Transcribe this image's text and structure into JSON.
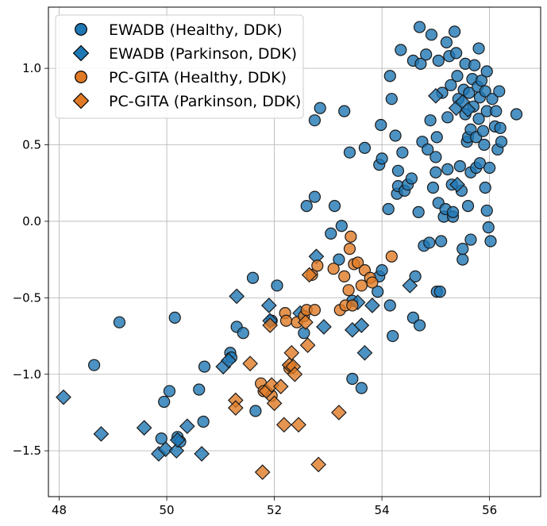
{
  "chart_data": {
    "type": "scatter",
    "xlim": [
      47.8,
      56.95
    ],
    "ylim": [
      -1.8,
      1.4
    ],
    "xticks": [
      48,
      50,
      52,
      54,
      56
    ],
    "yticks": [
      -1.5,
      -1.0,
      -0.5,
      0.0,
      0.5,
      1.0
    ],
    "xtick_labels": [
      "48",
      "50",
      "52",
      "54",
      "56"
    ],
    "ytick_labels": [
      "−1.5",
      "−1.0",
      "−0.5",
      "0.0",
      "0.5",
      "1.0"
    ],
    "grid": true,
    "legend_position": "upper-left",
    "series": [
      {
        "name": "EWADB (Healthy, DDK)",
        "marker": "circle",
        "color": "#1f77b4",
        "edgecolor": "#1a1a1a",
        "points": [
          [
            48.65,
            -0.94
          ],
          [
            49.12,
            -0.66
          ],
          [
            49.9,
            -1.42
          ],
          [
            49.95,
            -1.18
          ],
          [
            50.05,
            -1.11
          ],
          [
            50.15,
            -0.63
          ],
          [
            50.2,
            -1.41
          ],
          [
            50.25,
            -1.44
          ],
          [
            50.6,
            -1.1
          ],
          [
            50.68,
            -1.31
          ],
          [
            50.7,
            -0.95
          ],
          [
            51.18,
            -0.86
          ],
          [
            51.2,
            -0.89
          ],
          [
            51.3,
            -0.69
          ],
          [
            51.42,
            -0.73
          ],
          [
            51.6,
            -0.37
          ],
          [
            51.65,
            -1.24
          ],
          [
            51.95,
            -0.65
          ],
          [
            52.05,
            -0.42
          ],
          [
            52.55,
            -0.73
          ],
          [
            52.6,
            0.1
          ],
          [
            52.75,
            0.66
          ],
          [
            52.75,
            0.16
          ],
          [
            52.85,
            0.74
          ],
          [
            53.05,
            -0.08
          ],
          [
            53.12,
            0.1
          ],
          [
            53.2,
            -0.25
          ],
          [
            53.25,
            -0.03
          ],
          [
            53.3,
            0.72
          ],
          [
            53.4,
            0.45
          ],
          [
            53.45,
            -0.52
          ],
          [
            53.45,
            -1.03
          ],
          [
            53.62,
            -1.09
          ],
          [
            53.68,
            0.48
          ],
          [
            53.92,
            -0.46
          ],
          [
            53.95,
            -0.36
          ],
          [
            53.95,
            0.37
          ],
          [
            53.98,
            0.63
          ],
          [
            54.0,
            0.41
          ],
          [
            54.0,
            -0.32
          ],
          [
            54.12,
            0.08
          ],
          [
            54.15,
            -0.55
          ],
          [
            54.15,
            0.95
          ],
          [
            54.18,
            0.8
          ],
          [
            54.2,
            -0.75
          ],
          [
            54.25,
            0.56
          ],
          [
            54.28,
            0.18
          ],
          [
            54.3,
            0.33
          ],
          [
            54.3,
            0.23
          ],
          [
            54.35,
            1.12
          ],
          [
            54.38,
            0.45
          ],
          [
            54.42,
            0.2
          ],
          [
            54.48,
            0.24
          ],
          [
            54.55,
            0.28
          ],
          [
            54.58,
            -0.63
          ],
          [
            54.58,
            1.05
          ],
          [
            54.62,
            -0.36
          ],
          [
            54.68,
            0.06
          ],
          [
            54.7,
            -0.68
          ],
          [
            54.7,
            1.27
          ],
          [
            54.72,
            1.03
          ],
          [
            54.75,
            0.52
          ],
          [
            54.78,
            -0.16
          ],
          [
            54.82,
            1.09
          ],
          [
            54.85,
            0.47
          ],
          [
            54.88,
            -0.14
          ],
          [
            54.9,
            0.66
          ],
          [
            54.92,
            1.22
          ],
          [
            54.95,
            0.22
          ],
          [
            55.0,
            0.32
          ],
          [
            55.0,
            0.42
          ],
          [
            55.02,
            0.55
          ],
          [
            55.02,
            -0.46
          ],
          [
            55.05,
            1.05
          ],
          [
            55.05,
            0.12
          ],
          [
            55.08,
            -0.46
          ],
          [
            55.1,
            -0.13
          ],
          [
            55.12,
            0.84
          ],
          [
            55.15,
            0.03
          ],
          [
            55.18,
            0.08
          ],
          [
            55.2,
            1.17
          ],
          [
            55.22,
            0.34
          ],
          [
            55.22,
            0.68
          ],
          [
            55.25,
            1.08
          ],
          [
            55.28,
            0.89
          ],
          [
            55.3,
            0.24
          ],
          [
            55.32,
            0.03
          ],
          [
            55.32,
            0.06
          ],
          [
            55.35,
            1.24
          ],
          [
            55.38,
            1.1
          ],
          [
            55.4,
            0.95
          ],
          [
            55.42,
            0.8
          ],
          [
            55.45,
            0.36
          ],
          [
            55.48,
            0.2
          ],
          [
            55.5,
            -0.25
          ],
          [
            55.5,
            -0.18
          ],
          [
            55.52,
            0.86
          ],
          [
            55.55,
            0.7
          ],
          [
            55.55,
            1.03
          ],
          [
            55.58,
            0.52
          ],
          [
            55.6,
            0.55
          ],
          [
            55.6,
            0.1
          ],
          [
            55.62,
            0.84
          ],
          [
            55.65,
            -0.12
          ],
          [
            55.65,
            0.32
          ],
          [
            55.65,
            0.6
          ],
          [
            55.68,
            0.93
          ],
          [
            55.7,
            0.75
          ],
          [
            55.72,
            1.02
          ],
          [
            55.75,
            0.55
          ],
          [
            55.75,
            0.35
          ],
          [
            55.78,
            0.88
          ],
          [
            55.8,
            0.67
          ],
          [
            55.8,
            1.13
          ],
          [
            55.82,
            0.38
          ],
          [
            55.82,
            0.81
          ],
          [
            55.85,
            0.92
          ],
          [
            55.88,
            0.59
          ],
          [
            55.9,
            0.5
          ],
          [
            55.92,
            0.22
          ],
          [
            55.92,
            0.85
          ],
          [
            55.95,
            0.07
          ],
          [
            55.95,
            0.72
          ],
          [
            55.95,
            0.98
          ],
          [
            55.98,
            -0.04
          ],
          [
            56.0,
            0.35
          ],
          [
            56.02,
            -0.13
          ],
          [
            56.05,
            0.8
          ],
          [
            56.1,
            0.62
          ],
          [
            56.12,
            0.72
          ],
          [
            56.15,
            0.47
          ],
          [
            56.18,
            0.85
          ],
          [
            56.2,
            0.61
          ],
          [
            56.22,
            0.52
          ],
          [
            56.5,
            0.7
          ]
        ]
      },
      {
        "name": "EWADB (Parkinson, DDK)",
        "marker": "diamond",
        "color": "#1f77b4",
        "edgecolor": "#1a1a1a",
        "points": [
          [
            48.08,
            -1.15
          ],
          [
            48.78,
            -1.39
          ],
          [
            49.58,
            -1.35
          ],
          [
            49.85,
            -1.52
          ],
          [
            49.98,
            -1.49
          ],
          [
            50.18,
            -1.5
          ],
          [
            50.2,
            -1.43
          ],
          [
            50.38,
            -1.34
          ],
          [
            50.65,
            -1.52
          ],
          [
            51.05,
            -0.95
          ],
          [
            51.15,
            -0.91
          ],
          [
            51.3,
            -0.49
          ],
          [
            51.9,
            -0.55
          ],
          [
            51.92,
            -0.65
          ],
          [
            52.48,
            -0.6
          ],
          [
            52.78,
            -0.23
          ],
          [
            52.92,
            -0.69
          ],
          [
            53.45,
            -0.71
          ],
          [
            53.55,
            -0.53
          ],
          [
            53.62,
            -0.68
          ],
          [
            53.68,
            -0.86
          ],
          [
            53.82,
            -0.55
          ],
          [
            54.52,
            -0.42
          ],
          [
            55.0,
            0.82
          ],
          [
            55.38,
            0.74
          ],
          [
            55.4,
            0.24
          ],
          [
            55.5,
            0.78
          ],
          [
            55.6,
            0.73
          ]
        ]
      },
      {
        "name": "PC-GITA (Healthy, DDK)",
        "marker": "circle",
        "color": "#e07a26",
        "edgecolor": "#1a1a1a",
        "points": [
          [
            51.75,
            -1.06
          ],
          [
            51.8,
            -1.11
          ],
          [
            51.95,
            -1.14
          ],
          [
            52.2,
            -0.6
          ],
          [
            52.22,
            -0.65
          ],
          [
            52.28,
            -0.96
          ],
          [
            52.42,
            -0.66
          ],
          [
            52.55,
            -0.62
          ],
          [
            52.6,
            -0.58
          ],
          [
            52.7,
            -0.35
          ],
          [
            52.75,
            -0.58
          ],
          [
            52.8,
            -0.29
          ],
          [
            53.1,
            -0.31
          ],
          [
            53.22,
            -0.58
          ],
          [
            53.3,
            -0.36
          ],
          [
            53.32,
            -0.55
          ],
          [
            53.38,
            -0.45
          ],
          [
            53.4,
            -0.18
          ],
          [
            53.42,
            -0.1
          ],
          [
            53.45,
            -0.55
          ],
          [
            53.48,
            -0.28
          ],
          [
            53.55,
            -0.27
          ],
          [
            53.62,
            -0.42
          ],
          [
            53.68,
            -0.32
          ],
          [
            53.78,
            -0.37
          ],
          [
            53.82,
            -0.4
          ],
          [
            54.18,
            -0.23
          ]
        ]
      },
      {
        "name": "PC-GITA (Parkinson, DDK)",
        "marker": "diamond",
        "color": "#e07a26",
        "edgecolor": "#1a1a1a",
        "points": [
          [
            51.78,
            -1.64
          ],
          [
            51.28,
            -1.17
          ],
          [
            51.28,
            -1.22
          ],
          [
            51.55,
            -0.93
          ],
          [
            51.85,
            -1.11
          ],
          [
            51.92,
            -0.68
          ],
          [
            51.95,
            -1.07
          ],
          [
            52.0,
            -1.19
          ],
          [
            52.12,
            -1.08
          ],
          [
            52.18,
            -1.33
          ],
          [
            52.28,
            -0.94
          ],
          [
            52.32,
            -0.86
          ],
          [
            52.35,
            -0.95
          ],
          [
            52.38,
            -1.0
          ],
          [
            52.45,
            -1.33
          ],
          [
            52.58,
            -0.66
          ],
          [
            52.62,
            -0.81
          ],
          [
            52.65,
            -0.35
          ],
          [
            52.82,
            -1.59
          ],
          [
            53.2,
            -1.25
          ]
        ]
      }
    ]
  }
}
